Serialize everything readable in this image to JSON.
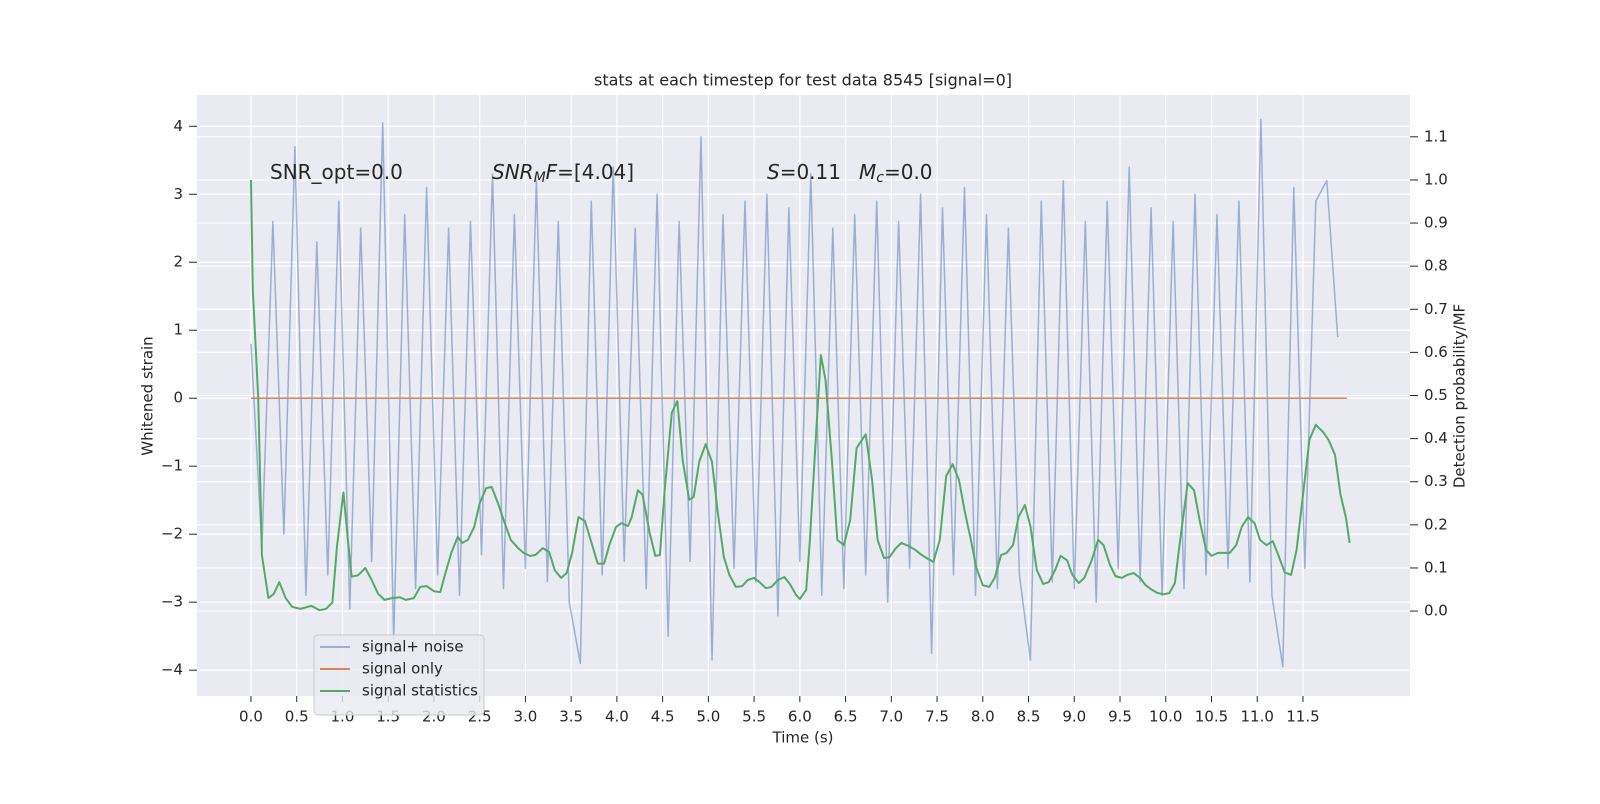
{
  "chart_data": {
    "type": "line",
    "title": "stats at each timestep for test data 8545 [signal=0]",
    "xlabel": "Time (s)",
    "ylabel": "Whitened strain",
    "y2label": "Detection probability/MF",
    "xlim": [
      -0.59,
      12.67
    ],
    "ylim": [
      -4.38,
      4.46
    ],
    "y2lim": [
      -0.197,
      1.197
    ],
    "xticks": [
      {
        "value": 0,
        "label": "0.0"
      },
      0.5,
      {
        "value": 1,
        "label": "1.0"
      },
      1.5,
      {
        "value": 2,
        "label": "2.0"
      },
      2.5,
      {
        "value": 3,
        "label": "3.0"
      },
      3.5,
      {
        "value": 4,
        "label": "4.0"
      },
      4.5,
      {
        "value": 5,
        "label": "5.0"
      },
      5.5,
      {
        "value": 6,
        "label": "6.0"
      },
      6.5,
      {
        "value": 7,
        "label": "7.0"
      },
      7.5,
      {
        "value": 8,
        "label": "8.0"
      },
      8.5,
      {
        "value": 9,
        "label": "9.0"
      },
      9.5,
      {
        "value": 10,
        "label": "10.0"
      },
      10.5,
      {
        "value": 11,
        "label": "11.0"
      },
      11.5
    ],
    "yticks": [
      {
        "value": -4,
        "label": "−4"
      },
      {
        "value": -3,
        "label": "−3"
      },
      {
        "value": -2,
        "label": "−2"
      },
      {
        "value": -1,
        "label": "−1"
      },
      0,
      1,
      2,
      3,
      4
    ],
    "y2ticks": [
      {
        "value": 0,
        "label": "0.0"
      },
      0.1,
      0.2,
      0.3,
      0.4,
      0.5,
      0.6,
      0.7,
      0.8,
      0.9,
      {
        "value": 1,
        "label": "1.0"
      },
      1.1
    ],
    "grid": true,
    "legend": "lower left",
    "annotations": [
      {
        "parts": [
          {
            "text": "SNR_opt=0.0"
          }
        ]
      },
      {
        "parts": [
          {
            "text": "SNR",
            "italic": true
          },
          {
            "text": "M",
            "italic": true,
            "sub": true
          },
          {
            "text": "F",
            "italic": true
          },
          {
            "text": "=[4.04]"
          }
        ]
      },
      {
        "parts": [
          {
            "text": "S",
            "italic": true
          },
          {
            "text": "=0.11"
          }
        ]
      },
      {
        "parts": [
          {
            "text": "M",
            "italic": true
          },
          {
            "text": "c",
            "italic": true,
            "sub": true
          },
          {
            "text": "=0.0"
          }
        ]
      }
    ],
    "series": [
      {
        "name": "signal+ noise",
        "color": "#4c72b0",
        "opacity": 0.5,
        "axis": "y",
        "x": [
          0,
          0.12,
          0.24,
          0.36,
          0.48,
          0.6,
          0.72,
          0.84,
          0.96,
          1.08,
          1.2,
          1.32,
          1.44,
          1.56,
          1.68,
          1.8,
          1.92,
          2.04,
          2.16,
          2.28,
          2.4,
          2.52,
          2.64,
          2.76,
          2.88,
          3,
          3.12,
          3.24,
          3.36,
          3.48,
          3.6,
          3.72,
          3.84,
          3.96,
          4.08,
          4.2,
          4.32,
          4.44,
          4.56,
          4.68,
          4.8,
          4.92,
          5.04,
          5.16,
          5.28,
          5.4,
          5.52,
          5.64,
          5.76,
          5.88,
          6,
          6.12,
          6.24,
          6.36,
          6.48,
          6.6,
          6.72,
          6.84,
          6.96,
          7.08,
          7.2,
          7.32,
          7.44,
          7.56,
          7.68,
          7.8,
          7.92,
          8.04,
          8.16,
          8.28,
          8.4,
          8.52,
          8.64,
          8.76,
          8.88,
          9,
          9.12,
          9.24,
          9.36,
          9.48,
          9.6,
          9.72,
          9.84,
          9.96,
          10.08,
          10.2,
          10.32,
          10.44,
          10.56,
          10.68,
          10.8,
          10.92,
          11.04,
          11.16,
          11.28,
          11.4,
          11.52,
          11.64,
          11.76,
          11.88
        ],
        "values": [
          0.8,
          -2.2,
          2.6,
          -2.0,
          3.7,
          -2.9,
          2.3,
          -2.6,
          2.9,
          -3.1,
          2.5,
          -2.4,
          4.05,
          -3.55,
          2.7,
          -2.8,
          3.1,
          -2.6,
          2.5,
          -2.9,
          2.6,
          -2.3,
          3.3,
          -2.8,
          2.7,
          -2.5,
          3.2,
          -2.7,
          2.6,
          -3.0,
          -3.9,
          2.9,
          -2.6,
          3.4,
          -2.4,
          2.5,
          -2.8,
          3.0,
          -3.5,
          2.6,
          -2.4,
          3.85,
          -3.85,
          2.7,
          -2.5,
          2.9,
          -2.7,
          3.0,
          -3.2,
          2.8,
          -2.4,
          3.3,
          -2.9,
          2.5,
          -2.8,
          2.7,
          -2.6,
          2.9,
          -3.0,
          2.6,
          -2.5,
          3.0,
          -3.75,
          2.8,
          -2.6,
          3.1,
          -2.9,
          2.7,
          -2.8,
          2.5,
          -2.6,
          -3.85,
          2.9,
          -2.7,
          3.2,
          -2.8,
          2.6,
          -3.0,
          2.9,
          -2.5,
          3.4,
          -2.7,
          2.8,
          -2.9,
          2.6,
          -2.8,
          3.0,
          -2.6,
          2.7,
          -2.5,
          2.9,
          -2.7,
          4.1,
          -2.9,
          -3.95,
          3.1,
          -2.5,
          2.9,
          3.2,
          0.9
        ]
      },
      {
        "name": "signal only",
        "color": "#dd8452",
        "opacity": 1,
        "axis": "y",
        "x": [
          0,
          11.98
        ],
        "values": [
          0,
          0
        ]
      },
      {
        "name": "signal statistics",
        "color": "#55a868",
        "opacity": 1,
        "axis": "y2",
        "x": [
          0,
          0.02,
          0.08,
          0.12,
          0.19,
          0.25,
          0.31,
          0.38,
          0.45,
          0.54,
          0.66,
          0.75,
          0.82,
          0.89,
          0.94,
          1.01,
          1.06,
          1.1,
          1.17,
          1.25,
          1.32,
          1.39,
          1.46,
          1.54,
          1.63,
          1.69,
          1.78,
          1.85,
          1.92,
          2.0,
          2.07,
          2.12,
          2.19,
          2.26,
          2.31,
          2.37,
          2.44,
          2.5,
          2.57,
          2.63,
          2.7,
          2.77,
          2.84,
          2.92,
          2.98,
          3.05,
          3.11,
          3.19,
          3.26,
          3.32,
          3.39,
          3.45,
          3.51,
          3.58,
          3.65,
          3.73,
          3.79,
          3.86,
          3.92,
          3.99,
          4.05,
          4.12,
          4.16,
          4.23,
          4.28,
          4.36,
          4.42,
          4.47,
          4.52,
          4.6,
          4.66,
          4.72,
          4.79,
          4.84,
          4.9,
          4.97,
          5.04,
          5.1,
          5.17,
          5.23,
          5.3,
          5.37,
          5.43,
          5.5,
          5.56,
          5.63,
          5.69,
          5.76,
          5.83,
          5.89,
          5.96,
          6.0,
          6.07,
          6.11,
          6.18,
          6.23,
          6.28,
          6.35,
          6.41,
          6.48,
          6.55,
          6.62,
          6.72,
          6.79,
          6.85,
          6.92,
          6.98,
          7.05,
          7.11,
          7.19,
          7.26,
          7.32,
          7.4,
          7.46,
          7.53,
          7.6,
          7.67,
          7.74,
          7.8,
          7.87,
          7.93,
          8.0,
          8.07,
          8.13,
          8.2,
          8.26,
          8.33,
          8.39,
          8.46,
          8.52,
          8.59,
          8.66,
          8.72,
          8.79,
          8.85,
          8.92,
          8.98,
          9.05,
          9.11,
          9.19,
          9.26,
          9.32,
          9.39,
          9.45,
          9.52,
          9.58,
          9.65,
          9.72,
          9.78,
          9.85,
          9.91,
          9.98,
          10.04,
          10.1,
          10.15,
          10.24,
          10.31,
          10.37,
          10.44,
          10.5,
          10.57,
          10.7,
          10.77,
          10.83,
          10.9,
          10.97,
          11.03,
          11.1,
          11.17,
          11.23,
          11.3,
          11.37,
          11.43,
          11.5,
          11.57,
          11.64,
          11.72,
          11.78,
          11.85,
          11.91,
          11.97,
          12.01
        ],
        "values": [
          1.0,
          0.745,
          0.49,
          0.13,
          0.03,
          0.04,
          0.067,
          0.03,
          0.01,
          0.005,
          0.012,
          0.002,
          0.005,
          0.02,
          0.15,
          0.275,
          0.165,
          0.08,
          0.083,
          0.1,
          0.072,
          0.04,
          0.026,
          0.03,
          0.032,
          0.026,
          0.03,
          0.056,
          0.058,
          0.046,
          0.044,
          0.084,
          0.135,
          0.172,
          0.158,
          0.165,
          0.195,
          0.25,
          0.285,
          0.288,
          0.25,
          0.206,
          0.165,
          0.146,
          0.135,
          0.128,
          0.13,
          0.146,
          0.137,
          0.095,
          0.077,
          0.088,
          0.135,
          0.218,
          0.209,
          0.153,
          0.11,
          0.11,
          0.155,
          0.195,
          0.204,
          0.197,
          0.216,
          0.28,
          0.27,
          0.18,
          0.128,
          0.13,
          0.276,
          0.46,
          0.487,
          0.35,
          0.258,
          0.265,
          0.346,
          0.387,
          0.346,
          0.234,
          0.125,
          0.084,
          0.056,
          0.058,
          0.072,
          0.077,
          0.067,
          0.053,
          0.056,
          0.072,
          0.079,
          0.063,
          0.037,
          0.028,
          0.049,
          0.165,
          0.42,
          0.594,
          0.536,
          0.35,
          0.165,
          0.153,
          0.211,
          0.378,
          0.41,
          0.304,
          0.165,
          0.123,
          0.125,
          0.146,
          0.158,
          0.151,
          0.142,
          0.132,
          0.121,
          0.114,
          0.165,
          0.313,
          0.341,
          0.304,
          0.234,
          0.165,
          0.1,
          0.06,
          0.056,
          0.077,
          0.13,
          0.135,
          0.153,
          0.218,
          0.246,
          0.197,
          0.095,
          0.063,
          0.067,
          0.095,
          0.128,
          0.118,
          0.084,
          0.065,
          0.077,
          0.118,
          0.165,
          0.153,
          0.107,
          0.081,
          0.077,
          0.084,
          0.088,
          0.077,
          0.06,
          0.049,
          0.042,
          0.039,
          0.042,
          0.065,
          0.153,
          0.297,
          0.28,
          0.211,
          0.142,
          0.128,
          0.135,
          0.135,
          0.153,
          0.195,
          0.218,
          0.204,
          0.165,
          0.153,
          0.162,
          0.13,
          0.09,
          0.084,
          0.142,
          0.27,
          0.397,
          0.432,
          0.415,
          0.397,
          0.362,
          0.27,
          0.216,
          0.158
        ]
      }
    ]
  }
}
